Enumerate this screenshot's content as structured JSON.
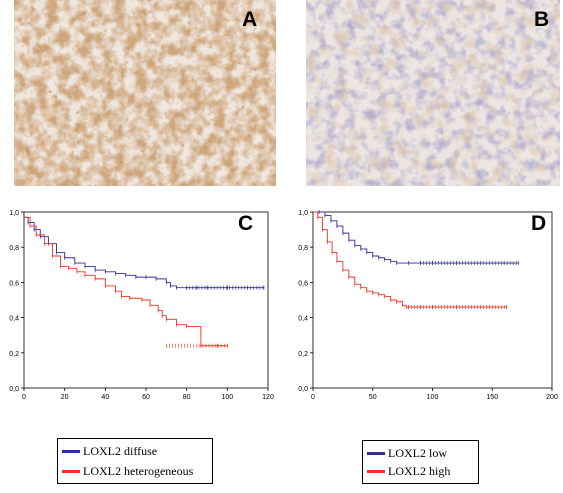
{
  "panels": {
    "a": {
      "letter": "A"
    },
    "b": {
      "letter": "B"
    },
    "c": {
      "letter": "C"
    },
    "d": {
      "letter": "D"
    }
  },
  "colors": {
    "blue": "#2e2e9a",
    "red": "#ee3322"
  },
  "legend_c": [
    "LOXL2 diffuse",
    "LOXL2 heterogeneous"
  ],
  "legend_d": [
    "LOXL2 low",
    "LOXL2 high"
  ],
  "chart_data": [
    {
      "type": "line",
      "panel": "C",
      "title": "",
      "xlabel": "",
      "ylabel": "",
      "xlim": [
        0,
        120
      ],
      "ylim": [
        0,
        1.0
      ],
      "xticks": [
        "0",
        "20",
        "40",
        "60",
        "80",
        "100",
        "120"
      ],
      "yticks": [
        "0,0",
        "0,2",
        "0,4",
        "0,6",
        "0,8",
        "1,0"
      ],
      "series": [
        {
          "name": "LOXL2 diffuse",
          "color": "#2e2e9a",
          "x": [
            0,
            2,
            5,
            8,
            12,
            16,
            20,
            25,
            30,
            35,
            40,
            45,
            50,
            55,
            60,
            65,
            70,
            72,
            75,
            80,
            85,
            90,
            100,
            110,
            118
          ],
          "y": [
            0.97,
            0.94,
            0.9,
            0.86,
            0.82,
            0.77,
            0.74,
            0.71,
            0.69,
            0.67,
            0.66,
            0.65,
            0.64,
            0.63,
            0.63,
            0.62,
            0.6,
            0.58,
            0.57,
            0.57,
            0.57,
            0.57,
            0.57,
            0.57,
            0.57
          ]
        },
        {
          "name": "LOXL2 heterogeneous",
          "color": "#ee3322",
          "x": [
            0,
            3,
            6,
            10,
            14,
            18,
            22,
            26,
            30,
            35,
            40,
            45,
            48,
            52,
            58,
            62,
            66,
            68,
            70,
            75,
            80,
            87,
            95,
            100
          ],
          "y": [
            0.97,
            0.92,
            0.87,
            0.82,
            0.75,
            0.69,
            0.68,
            0.66,
            0.64,
            0.62,
            0.58,
            0.55,
            0.52,
            0.51,
            0.5,
            0.47,
            0.44,
            0.41,
            0.39,
            0.36,
            0.35,
            0.24,
            0.24,
            0.24
          ]
        }
      ]
    },
    {
      "type": "line",
      "panel": "D",
      "title": "",
      "xlabel": "",
      "ylabel": "",
      "xlim": [
        0,
        200
      ],
      "ylim": [
        0,
        1.0
      ],
      "xticks": [
        "0",
        "50",
        "100",
        "150",
        "200"
      ],
      "yticks": [
        "0,0",
        "0,2",
        "0,4",
        "0,6",
        "0,8",
        "1,0"
      ],
      "series": [
        {
          "name": "LOXL2 low",
          "color": "#2e2e9a",
          "x": [
            0,
            5,
            10,
            15,
            20,
            25,
            30,
            35,
            40,
            45,
            50,
            55,
            60,
            65,
            70,
            80,
            90,
            100,
            120,
            140,
            160,
            172
          ],
          "y": [
            1.0,
            1.0,
            0.98,
            0.95,
            0.92,
            0.88,
            0.84,
            0.81,
            0.79,
            0.77,
            0.75,
            0.74,
            0.73,
            0.72,
            0.71,
            0.71,
            0.71,
            0.71,
            0.71,
            0.71,
            0.71,
            0.71
          ]
        },
        {
          "name": "LOXL2 high",
          "color": "#ee3322",
          "x": [
            0,
            4,
            8,
            12,
            16,
            20,
            25,
            30,
            35,
            40,
            45,
            50,
            55,
            60,
            65,
            70,
            75,
            78,
            80,
            90,
            100,
            120,
            140,
            162
          ],
          "y": [
            1.0,
            0.97,
            0.9,
            0.83,
            0.77,
            0.72,
            0.67,
            0.63,
            0.59,
            0.57,
            0.55,
            0.54,
            0.53,
            0.52,
            0.5,
            0.49,
            0.47,
            0.46,
            0.46,
            0.46,
            0.46,
            0.46,
            0.46,
            0.46
          ]
        }
      ]
    }
  ]
}
